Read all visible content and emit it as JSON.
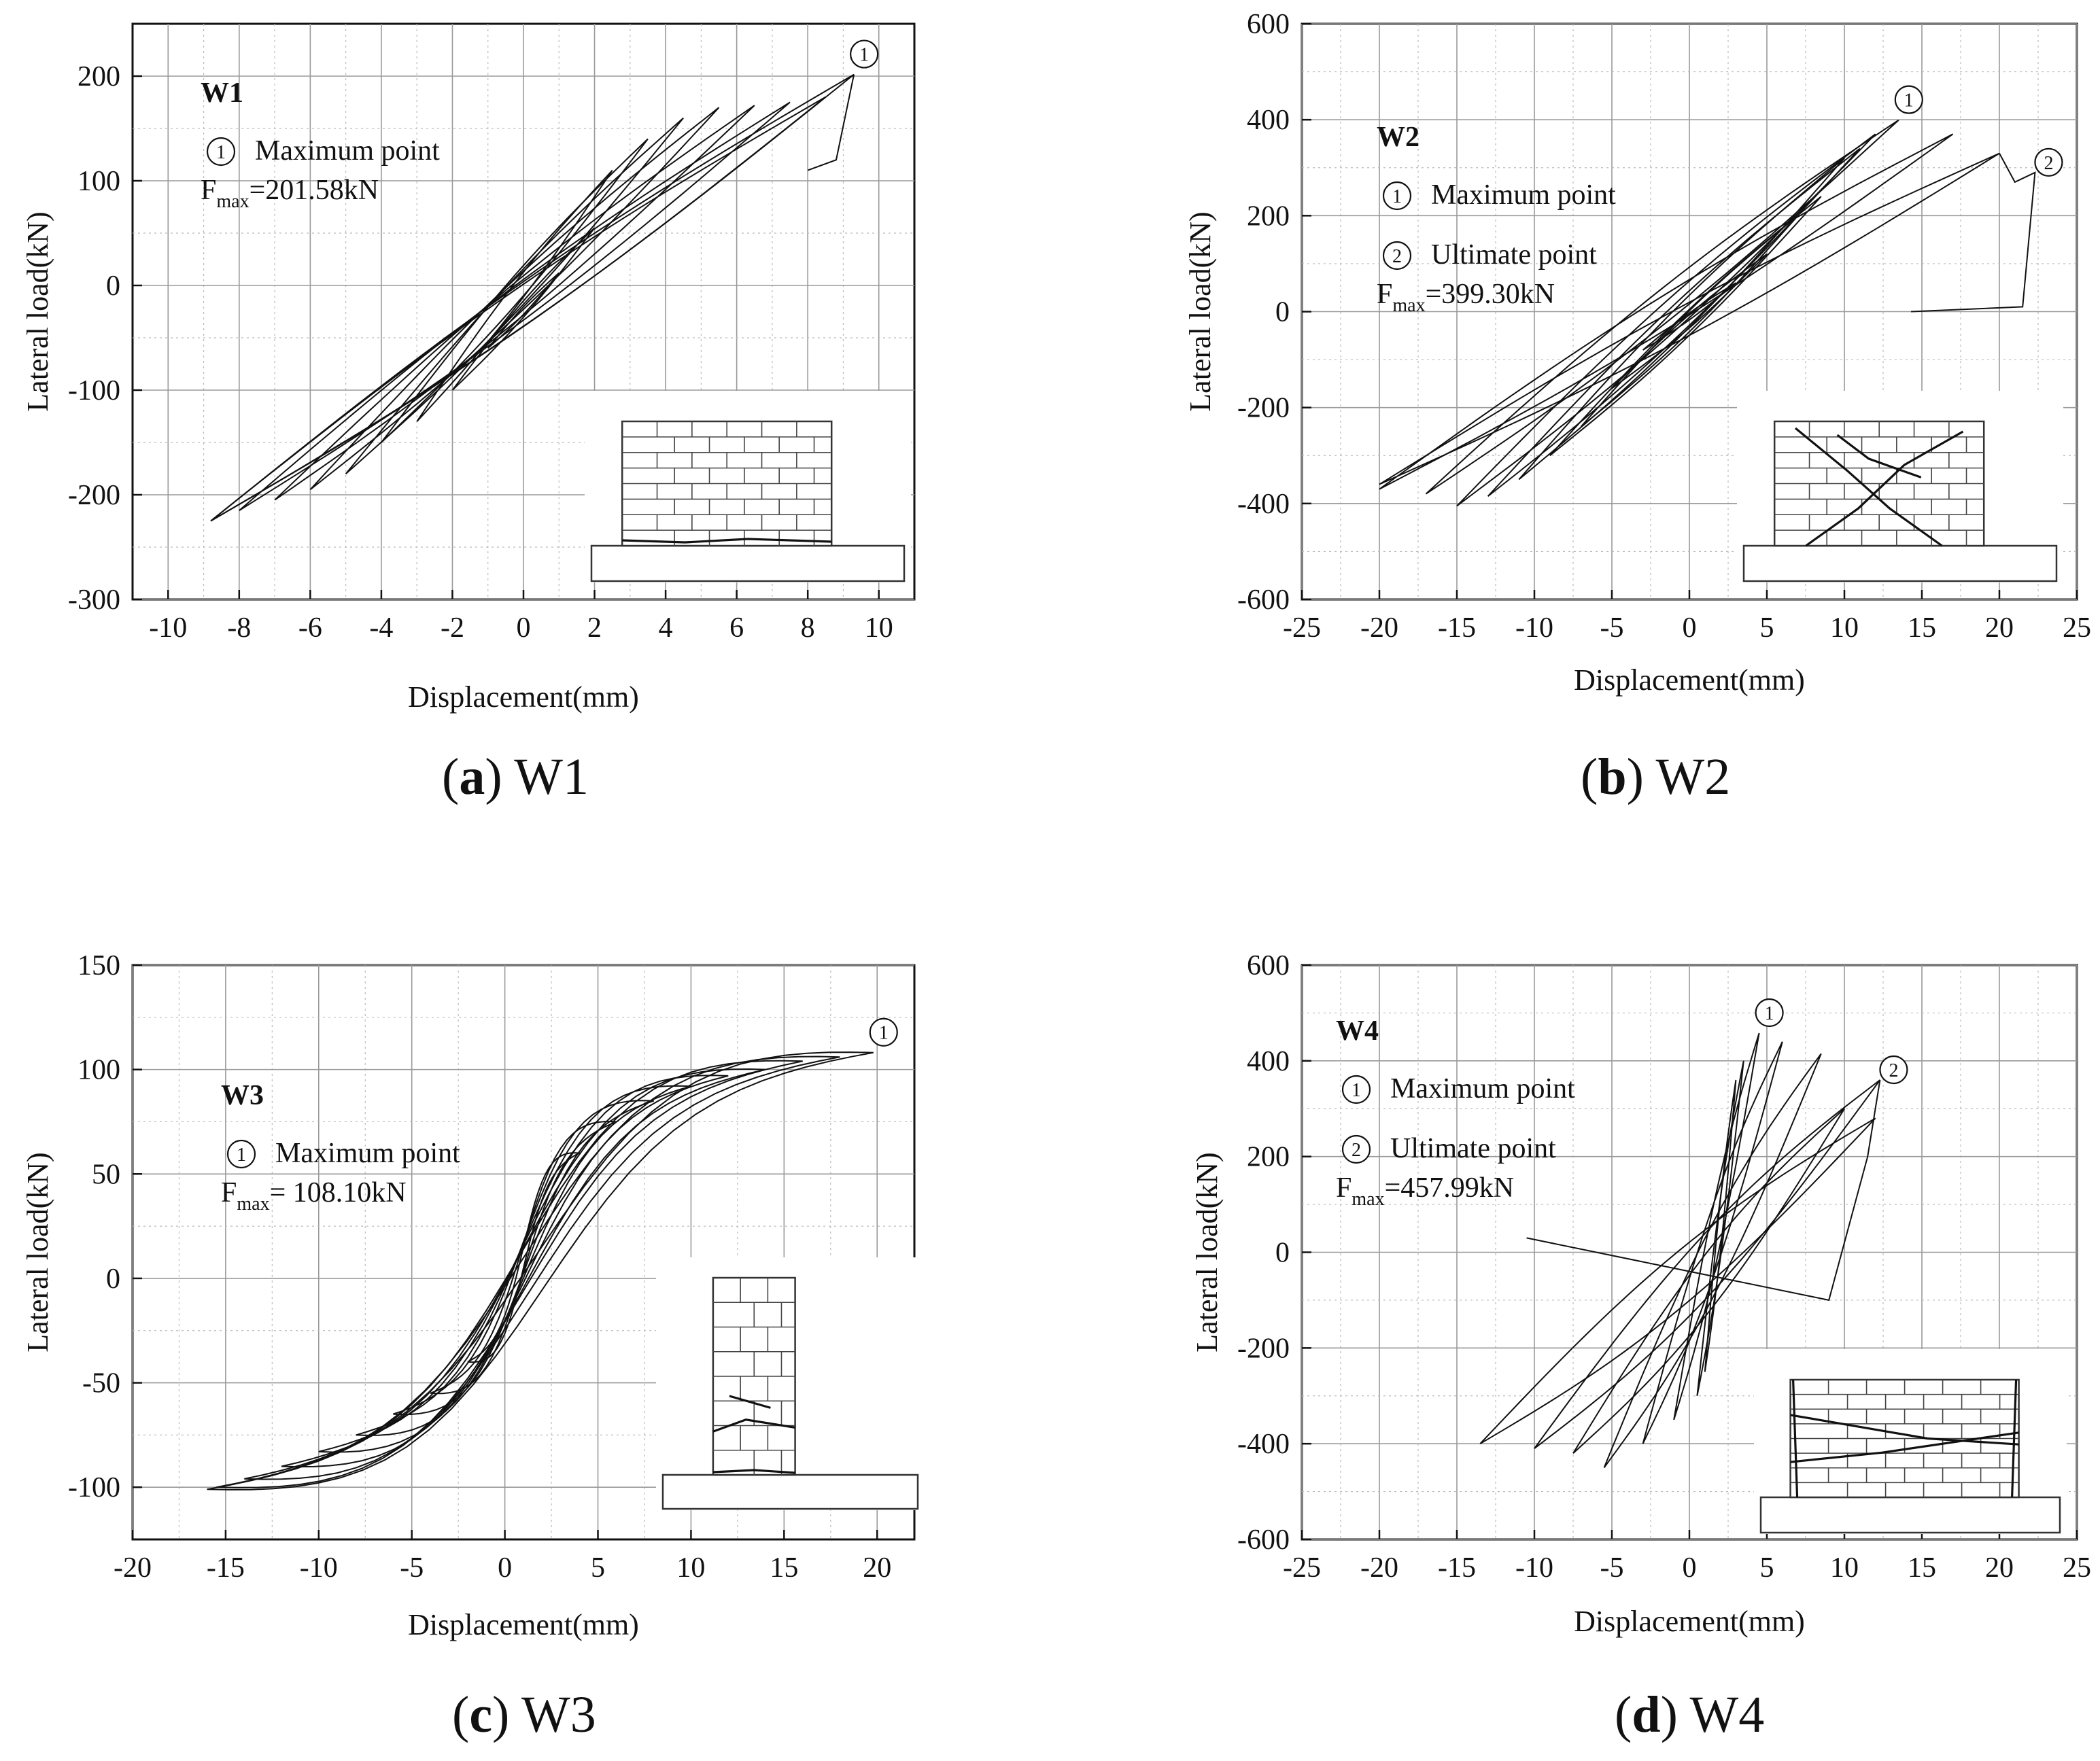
{
  "panels": [
    {
      "id": "a",
      "caption_letter": "a",
      "caption_text": "W1",
      "specimen_label": "W1",
      "annotations": [
        "Maximum point"
      ],
      "fmax_label": "=201.58kN",
      "fmax_sub": "max",
      "fmax_prefix": "F",
      "markers": [
        "1"
      ],
      "specimen_type": "squat-wall-bottom-crack",
      "chart_data": {
        "type": "line",
        "title": "W1",
        "xlabel": "Displacement(mm)",
        "ylabel": "Lateral load(kN)",
        "xlim": [
          -11,
          11
        ],
        "ylim": [
          -300,
          250
        ],
        "xticks": [
          -10,
          -8,
          -6,
          -4,
          -2,
          0,
          2,
          4,
          6,
          8,
          10
        ],
        "yticks": [
          -300,
          -200,
          -100,
          0,
          100,
          200
        ],
        "grid": true,
        "max_point": {
          "x": 9.3,
          "y": 201.58
        },
        "amplitudes": [
          [
            1,
            12,
            -1,
            -60
          ],
          [
            2,
            55,
            -2,
            -100
          ],
          [
            2.5,
            110,
            -3,
            -130
          ],
          [
            3.5,
            140,
            -4,
            -150
          ],
          [
            4.5,
            160,
            -5,
            -180
          ],
          [
            5.5,
            170,
            -6,
            -195
          ],
          [
            6.5,
            172,
            -7,
            -205
          ],
          [
            7.5,
            175,
            -8,
            -215
          ],
          [
            8.5,
            180,
            -8.8,
            -225
          ],
          [
            9.3,
            201.58,
            -8.8,
            -225
          ]
        ],
        "post_peak": [
          [
            9.3,
            201.58
          ],
          [
            8.8,
            120
          ],
          [
            8.0,
            110
          ]
        ]
      }
    },
    {
      "id": "b",
      "caption_letter": "b",
      "caption_text": "W2",
      "specimen_label": "W2",
      "annotations": [
        "Maximum point",
        "Ultimate point"
      ],
      "fmax_label": "=399.30kN",
      "fmax_sub": "max",
      "fmax_prefix": "F",
      "markers": [
        "1",
        "2"
      ],
      "specimen_type": "squat-wall-diagonal-crack",
      "chart_data": {
        "type": "line",
        "title": "W2",
        "xlabel": "Displacement(mm)",
        "ylabel": "Lateral load(kN)",
        "xlim": [
          -25,
          25
        ],
        "ylim": [
          -600,
          600
        ],
        "xticks": [
          -25,
          -20,
          -15,
          -10,
          -5,
          0,
          5,
          10,
          15,
          20,
          25
        ],
        "yticks": [
          -600,
          -400,
          -200,
          0,
          200,
          400,
          600
        ],
        "grid": true,
        "max_point": {
          "x": 13.5,
          "y": 399.3
        },
        "ultimate_point": {
          "x": 22.3,
          "y": 290
        },
        "amplitudes": [
          [
            3,
            60,
            -3,
            -80
          ],
          [
            5,
            120,
            -5,
            -160
          ],
          [
            7,
            200,
            -7,
            -240
          ],
          [
            8.5,
            240,
            -9,
            -300
          ],
          [
            10,
            320,
            -11,
            -350
          ],
          [
            11,
            340,
            -13,
            -385
          ],
          [
            12,
            370,
            -15,
            -405
          ],
          [
            13.5,
            399.3,
            -17,
            -380
          ],
          [
            17,
            370,
            -20,
            -370
          ],
          [
            20,
            330,
            -20,
            -360
          ]
        ],
        "post_peak": [
          [
            20,
            330
          ],
          [
            21,
            270
          ],
          [
            22.3,
            290
          ],
          [
            21.5,
            10
          ],
          [
            14.3,
            0
          ]
        ]
      }
    },
    {
      "id": "c",
      "caption_letter": "c",
      "caption_text": "W3",
      "specimen_label": "W3",
      "annotations": [
        "Maximum point"
      ],
      "fmax_label": "= 108.10kN",
      "fmax_sub": "max",
      "fmax_prefix": "F",
      "markers": [
        "1"
      ],
      "specimen_type": "slender-wall-bottom-crack",
      "chart_data": {
        "type": "line",
        "title": "W3",
        "xlabel": "Displacement(mm)",
        "ylabel": "Lateral load(kN)",
        "xlim": [
          -20,
          22
        ],
        "ylim": [
          -125,
          150
        ],
        "xticks": [
          -20,
          -15,
          -10,
          -5,
          0,
          5,
          10,
          15,
          20
        ],
        "yticks": [
          -100,
          -50,
          0,
          50,
          100,
          150
        ],
        "grid": true,
        "max_point": {
          "x": 19.8,
          "y": 108.1
        },
        "amplitudes": [
          [
            4,
            60,
            -2,
            -40
          ],
          [
            6,
            75,
            -4,
            -55
          ],
          [
            8,
            85,
            -6,
            -65
          ],
          [
            10,
            92,
            -8,
            -75
          ],
          [
            12,
            97,
            -10,
            -83
          ],
          [
            14,
            100,
            -12,
            -90
          ],
          [
            16,
            104,
            -14,
            -96
          ],
          [
            18,
            106,
            -15.5,
            -100
          ],
          [
            19.8,
            108.1,
            -16,
            -101
          ]
        ],
        "post_peak": []
      }
    },
    {
      "id": "d",
      "caption_letter": "d",
      "caption_text": "W4",
      "specimen_label": "W4",
      "annotations": [
        "Maximum point",
        "Ultimate point"
      ],
      "fmax_label": "=457.99kN",
      "fmax_sub": "max",
      "fmax_prefix": "F",
      "markers": [
        "1",
        "2"
      ],
      "specimen_type": "wall-stepped-crack",
      "chart_data": {
        "type": "line",
        "title": "W4",
        "xlabel": "Displacement(mm)",
        "ylabel": "Lateral load(kN)",
        "xlim": [
          -25,
          25
        ],
        "ylim": [
          -600,
          600
        ],
        "xticks": [
          -25,
          -20,
          -15,
          -10,
          -5,
          0,
          5,
          10,
          15,
          20,
          25
        ],
        "yticks": [
          -600,
          -400,
          -200,
          0,
          200,
          400,
          600
        ],
        "grid": true,
        "max_point": {
          "x": 4.5,
          "y": 457.99
        },
        "ultimate_point": {
          "x": 12.3,
          "y": 360
        },
        "loops": [
          [
            3,
            360,
            1,
            -250
          ],
          [
            3.5,
            400,
            0.5,
            -300
          ],
          [
            4.5,
            457.99,
            -1,
            -350
          ],
          [
            6,
            440,
            -3,
            -400
          ],
          [
            8.5,
            415,
            -5.5,
            -450
          ],
          [
            10,
            300,
            -7.5,
            -420
          ],
          [
            12.3,
            360,
            -10,
            -410
          ],
          [
            12,
            280,
            -13.5,
            -400
          ]
        ],
        "post_peak": [
          [
            12.3,
            360
          ],
          [
            11.5,
            200
          ],
          [
            9,
            -100
          ],
          [
            -10.5,
            30
          ]
        ]
      }
    }
  ]
}
